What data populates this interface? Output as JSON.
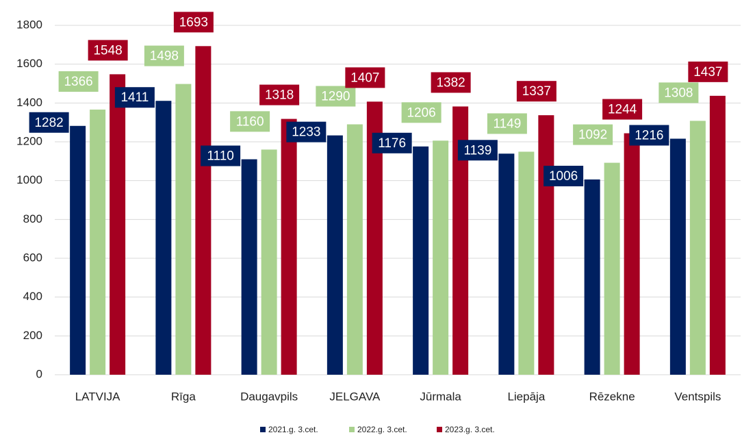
{
  "chart_data": {
    "type": "bar",
    "categories": [
      "LATVIJA",
      "Rīga",
      "Daugavpils",
      "JELGAVA",
      "Jūrmala",
      "Liepāja",
      "Rēzekne",
      "Ventspils"
    ],
    "series": [
      {
        "name": "2021.g. 3.cet.",
        "color": "#002060",
        "values": [
          1282,
          1411,
          1110,
          1233,
          1176,
          1139,
          1006,
          1216
        ]
      },
      {
        "name": "2022.g. 3.cet.",
        "color": "#a9d18e",
        "values": [
          1366,
          1498,
          1160,
          1290,
          1206,
          1149,
          1092,
          1308
        ]
      },
      {
        "name": "2023.g. 3.cet.",
        "color": "#a50021",
        "values": [
          1548,
          1693,
          1318,
          1407,
          1382,
          1337,
          1244,
          1437
        ]
      }
    ],
    "ylim": [
      0,
      1800
    ],
    "yticks": [
      0,
      200,
      400,
      600,
      800,
      1000,
      1200,
      1400,
      1600,
      1800
    ],
    "grid": true,
    "legend": "bottom"
  }
}
